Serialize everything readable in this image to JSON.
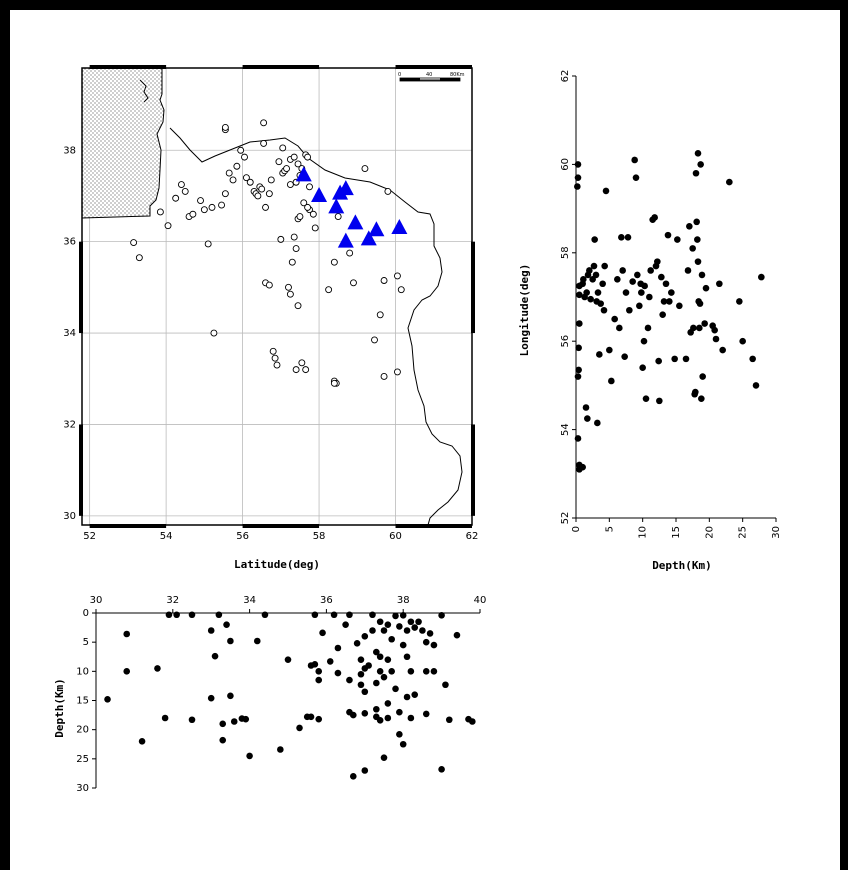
{
  "chart_data": [
    {
      "type": "scatter",
      "name": "map",
      "xlabel": "Latitude(deg)",
      "ylabel": "",
      "xlim": [
        51.8,
        62.0
      ],
      "ylim": [
        29.8,
        39.8
      ],
      "xticks": [
        52,
        54,
        56,
        58,
        60,
        62
      ],
      "yticks": [
        30,
        32,
        34,
        36,
        38
      ],
      "grid": true,
      "scale_bar_labels": [
        "0",
        "40",
        "80Km"
      ],
      "series": [
        {
          "marker": "open-circle",
          "points": [
            [
              54.05,
              36.35
            ],
            [
              54.25,
              36.95
            ],
            [
              53.15,
              35.98
            ],
            [
              53.3,
              35.65
            ],
            [
              53.85,
              36.65
            ],
            [
              54.4,
              37.25
            ],
            [
              54.5,
              37.1
            ],
            [
              54.6,
              36.55
            ],
            [
              54.7,
              36.6
            ],
            [
              54.9,
              36.9
            ],
            [
              55.0,
              36.7
            ],
            [
              55.2,
              36.75
            ],
            [
              55.1,
              35.95
            ],
            [
              55.45,
              36.8
            ],
            [
              55.55,
              37.05
            ],
            [
              55.65,
              37.5
            ],
            [
              55.75,
              37.35
            ],
            [
              55.55,
              38.45
            ],
            [
              55.85,
              37.65
            ],
            [
              55.95,
              38.0
            ],
            [
              56.05,
              37.85
            ],
            [
              56.1,
              37.4
            ],
            [
              56.2,
              37.3
            ],
            [
              56.3,
              37.1
            ],
            [
              56.35,
              37.05
            ],
            [
              56.4,
              37.0
            ],
            [
              56.45,
              37.2
            ],
            [
              56.5,
              37.15
            ],
            [
              56.6,
              36.75
            ],
            [
              56.55,
              38.6
            ],
            [
              56.7,
              37.05
            ],
            [
              56.75,
              37.35
            ],
            [
              56.95,
              37.75
            ],
            [
              57.05,
              37.5
            ],
            [
              57.1,
              37.55
            ],
            [
              57.15,
              37.6
            ],
            [
              57.25,
              37.8
            ],
            [
              57.35,
              37.85
            ],
            [
              57.45,
              37.7
            ],
            [
              57.55,
              37.6
            ],
            [
              57.4,
              37.3
            ],
            [
              57.5,
              37.45
            ],
            [
              57.65,
              37.9
            ],
            [
              57.7,
              37.85
            ],
            [
              57.75,
              37.2
            ],
            [
              57.35,
              36.1
            ],
            [
              57.45,
              36.5
            ],
            [
              57.5,
              36.55
            ],
            [
              57.6,
              36.85
            ],
            [
              57.75,
              36.7
            ],
            [
              57.85,
              36.6
            ],
            [
              57.9,
              36.3
            ],
            [
              57.3,
              35.55
            ],
            [
              57.4,
              35.85
            ],
            [
              57.0,
              36.05
            ],
            [
              56.6,
              35.1
            ],
            [
              56.7,
              35.05
            ],
            [
              57.2,
              35.0
            ],
            [
              57.25,
              34.85
            ],
            [
              57.45,
              34.6
            ],
            [
              56.8,
              33.6
            ],
            [
              56.85,
              33.45
            ],
            [
              56.9,
              33.3
            ],
            [
              57.4,
              33.2
            ],
            [
              57.55,
              33.35
            ],
            [
              57.65,
              33.2
            ],
            [
              58.25,
              34.95
            ],
            [
              58.4,
              35.55
            ],
            [
              58.5,
              36.55
            ],
            [
              58.8,
              35.75
            ],
            [
              58.9,
              35.1
            ],
            [
              59.2,
              37.6
            ],
            [
              59.7,
              35.15
            ],
            [
              59.8,
              37.1
            ],
            [
              60.05,
              35.25
            ],
            [
              60.15,
              34.95
            ],
            [
              59.6,
              34.4
            ],
            [
              59.45,
              33.85
            ],
            [
              59.7,
              33.05
            ],
            [
              60.05,
              33.15
            ],
            [
              58.4,
              32.95
            ],
            [
              58.45,
              32.9
            ],
            [
              58.4,
              32.9
            ],
            [
              55.25,
              34.0
            ],
            [
              55.55,
              38.5
            ],
            [
              56.55,
              38.15
            ],
            [
              57.05,
              38.05
            ],
            [
              57.25,
              37.25
            ],
            [
              57.7,
              36.75
            ]
          ]
        },
        {
          "marker": "filled-triangle",
          "points": [
            [
              57.6,
              37.45
            ],
            [
              58.0,
              37.0
            ],
            [
              58.55,
              37.05
            ],
            [
              58.7,
              37.15
            ],
            [
              58.45,
              36.75
            ],
            [
              58.95,
              36.4
            ],
            [
              58.7,
              36.0
            ],
            [
              59.3,
              36.05
            ],
            [
              59.5,
              36.25
            ],
            [
              60.1,
              36.3
            ]
          ]
        }
      ]
    },
    {
      "type": "scatter",
      "name": "depth-longitude",
      "xlabel": "Depth(Km)",
      "ylabel": "Longitude(deg)",
      "xlim": [
        0,
        30
      ],
      "ylim": [
        52,
        62
      ],
      "xticks": [
        0,
        5,
        10,
        15,
        20,
        25,
        30
      ],
      "yticks": [
        52,
        54,
        56,
        58,
        60,
        62
      ],
      "grid": false,
      "points": [
        [
          0.3,
          60.0
        ],
        [
          0.3,
          59.7
        ],
        [
          0.2,
          59.5
        ],
        [
          0.5,
          53.2
        ],
        [
          0.5,
          53.1
        ],
        [
          0.3,
          53.8
        ],
        [
          1.0,
          53.15
        ],
        [
          1.5,
          54.5
        ],
        [
          1.7,
          54.25
        ],
        [
          3.2,
          54.15
        ],
        [
          0.3,
          55.2
        ],
        [
          0.4,
          55.35
        ],
        [
          0.4,
          55.85
        ],
        [
          0.5,
          57.25
        ],
        [
          0.5,
          57.05
        ],
        [
          0.5,
          56.4
        ],
        [
          1.0,
          57.3
        ],
        [
          1.1,
          57.4
        ],
        [
          1.3,
          57.0
        ],
        [
          1.6,
          57.1
        ],
        [
          1.8,
          57.5
        ],
        [
          2.0,
          57.6
        ],
        [
          2.2,
          56.95
        ],
        [
          2.5,
          57.4
        ],
        [
          2.7,
          57.7
        ],
        [
          2.8,
          58.3
        ],
        [
          3.0,
          57.5
        ],
        [
          3.1,
          56.9
        ],
        [
          3.3,
          57.1
        ],
        [
          3.5,
          55.7
        ],
        [
          3.7,
          56.85
        ],
        [
          4.0,
          57.3
        ],
        [
          4.2,
          56.7
        ],
        [
          4.3,
          57.7
        ],
        [
          4.5,
          59.4
        ],
        [
          5.0,
          55.8
        ],
        [
          5.3,
          55.1
        ],
        [
          5.8,
          56.5
        ],
        [
          6.2,
          57.4
        ],
        [
          6.5,
          56.3
        ],
        [
          6.8,
          58.35
        ],
        [
          7.0,
          57.6
        ],
        [
          7.3,
          55.65
        ],
        [
          7.5,
          57.1
        ],
        [
          7.8,
          58.35
        ],
        [
          8.0,
          56.7
        ],
        [
          8.5,
          57.35
        ],
        [
          8.8,
          60.1
        ],
        [
          9.0,
          59.7
        ],
        [
          9.2,
          57.5
        ],
        [
          9.5,
          56.8
        ],
        [
          9.7,
          57.3
        ],
        [
          9.8,
          57.1
        ],
        [
          10.0,
          55.4
        ],
        [
          10.2,
          56.0
        ],
        [
          10.5,
          54.7
        ],
        [
          10.3,
          57.25
        ],
        [
          10.8,
          56.3
        ],
        [
          11.0,
          57.0
        ],
        [
          11.2,
          57.6
        ],
        [
          11.5,
          58.75
        ],
        [
          11.8,
          58.8
        ],
        [
          12.0,
          57.7
        ],
        [
          12.2,
          57.8
        ],
        [
          12.4,
          55.55
        ],
        [
          12.5,
          54.65
        ],
        [
          12.8,
          57.45
        ],
        [
          13.0,
          56.6
        ],
        [
          13.2,
          56.9
        ],
        [
          13.5,
          57.3
        ],
        [
          13.8,
          58.4
        ],
        [
          14.0,
          56.9
        ],
        [
          14.3,
          57.1
        ],
        [
          14.8,
          55.6
        ],
        [
          15.2,
          58.3
        ],
        [
          15.5,
          56.8
        ],
        [
          16.5,
          55.6
        ],
        [
          16.8,
          57.6
        ],
        [
          17.0,
          58.6
        ],
        [
          17.2,
          56.2
        ],
        [
          17.5,
          58.1
        ],
        [
          17.6,
          56.3
        ],
        [
          17.8,
          54.8
        ],
        [
          17.9,
          54.85
        ],
        [
          18.0,
          59.8
        ],
        [
          18.1,
          58.7
        ],
        [
          18.2,
          58.3
        ],
        [
          18.3,
          57.8
        ],
        [
          18.4,
          56.9
        ],
        [
          18.5,
          56.3
        ],
        [
          18.6,
          56.85
        ],
        [
          18.8,
          54.7
        ],
        [
          18.9,
          57.5
        ],
        [
          18.3,
          60.25
        ],
        [
          18.7,
          60.0
        ],
        [
          19.0,
          55.2
        ],
        [
          19.3,
          56.4
        ],
        [
          19.5,
          57.2
        ],
        [
          20.5,
          56.35
        ],
        [
          20.8,
          56.25
        ],
        [
          21.0,
          56.05
        ],
        [
          21.5,
          57.3
        ],
        [
          22.0,
          55.8
        ],
        [
          23.0,
          59.6
        ],
        [
          24.5,
          56.9
        ],
        [
          25.0,
          56.0
        ],
        [
          26.5,
          55.6
        ],
        [
          27.0,
          55.0
        ],
        [
          27.8,
          57.45
        ]
      ]
    },
    {
      "type": "scatter",
      "name": "longitude-depth",
      "xlabel": "",
      "ylabel": "Depth(Km)",
      "xlim": [
        30,
        40
      ],
      "ylim": [
        30,
        0
      ],
      "xticks": [
        30,
        32,
        34,
        36,
        38,
        40
      ],
      "yticks": [
        0,
        5,
        10,
        15,
        20,
        25,
        30
      ],
      "grid": false,
      "points": [
        [
          30.3,
          14.8
        ],
        [
          30.8,
          3.6
        ],
        [
          30.8,
          10.0
        ],
        [
          31.2,
          22.0
        ],
        [
          31.6,
          9.5
        ],
        [
          31.8,
          18.0
        ],
        [
          31.9,
          0.3
        ],
        [
          32.1,
          0.3
        ],
        [
          32.5,
          0.3
        ],
        [
          32.5,
          18.3
        ],
        [
          33.0,
          3.0
        ],
        [
          33.1,
          7.4
        ],
        [
          33.0,
          14.6
        ],
        [
          33.2,
          0.3
        ],
        [
          33.3,
          19.0
        ],
        [
          33.4,
          2.0
        ],
        [
          33.5,
          14.2
        ],
        [
          33.6,
          18.6
        ],
        [
          33.5,
          4.8
        ],
        [
          33.3,
          21.8
        ],
        [
          33.8,
          18.1
        ],
        [
          34.0,
          24.5
        ],
        [
          33.9,
          18.2
        ],
        [
          34.2,
          4.8
        ],
        [
          34.4,
          0.3
        ],
        [
          34.8,
          23.4
        ],
        [
          35.0,
          8.0
        ],
        [
          35.3,
          19.7
        ],
        [
          35.5,
          17.8
        ],
        [
          35.6,
          9.0
        ],
        [
          35.6,
          17.8
        ],
        [
          35.7,
          0.3
        ],
        [
          35.7,
          8.8
        ],
        [
          35.8,
          10.0
        ],
        [
          35.8,
          11.5
        ],
        [
          35.9,
          3.4
        ],
        [
          35.8,
          18.2
        ],
        [
          36.1,
          8.3
        ],
        [
          36.3,
          6.0
        ],
        [
          36.2,
          0.3
        ],
        [
          36.3,
          10.3
        ],
        [
          36.5,
          2.0
        ],
        [
          36.6,
          11.5
        ],
        [
          36.6,
          0.3
        ],
        [
          36.6,
          17.0
        ],
        [
          36.7,
          17.5
        ],
        [
          36.7,
          28.0
        ],
        [
          36.8,
          5.2
        ],
        [
          36.9,
          8.0
        ],
        [
          36.9,
          10.5
        ],
        [
          36.9,
          12.3
        ],
        [
          37.0,
          4.0
        ],
        [
          37.0,
          9.5
        ],
        [
          37.0,
          13.5
        ],
        [
          37.0,
          17.2
        ],
        [
          37.0,
          27.0
        ],
        [
          37.1,
          9.0
        ],
        [
          37.2,
          0.3
        ],
        [
          37.2,
          3.0
        ],
        [
          37.3,
          6.7
        ],
        [
          37.3,
          12.0
        ],
        [
          37.3,
          16.5
        ],
        [
          37.3,
          17.8
        ],
        [
          37.4,
          1.5
        ],
        [
          37.4,
          7.5
        ],
        [
          37.4,
          10.0
        ],
        [
          37.4,
          18.4
        ],
        [
          37.5,
          3.0
        ],
        [
          37.5,
          11.0
        ],
        [
          37.5,
          24.8
        ],
        [
          37.6,
          2.0
        ],
        [
          37.6,
          8.0
        ],
        [
          37.6,
          15.5
        ],
        [
          37.6,
          18.0
        ],
        [
          37.7,
          4.5
        ],
        [
          37.7,
          10.0
        ],
        [
          37.8,
          0.5
        ],
        [
          37.8,
          13.0
        ],
        [
          37.9,
          2.3
        ],
        [
          37.9,
          17.0
        ],
        [
          37.9,
          20.8
        ],
        [
          38.0,
          0.4
        ],
        [
          38.0,
          5.5
        ],
        [
          38.0,
          22.5
        ],
        [
          38.1,
          3.0
        ],
        [
          38.1,
          7.5
        ],
        [
          38.1,
          14.4
        ],
        [
          38.2,
          1.5
        ],
        [
          38.2,
          10.0
        ],
        [
          38.2,
          18.0
        ],
        [
          38.3,
          2.5
        ],
        [
          38.3,
          14.0
        ],
        [
          38.4,
          1.5
        ],
        [
          38.5,
          3.0
        ],
        [
          38.6,
          5.0
        ],
        [
          38.6,
          10.0
        ],
        [
          38.6,
          17.3
        ],
        [
          38.7,
          3.5
        ],
        [
          38.8,
          5.5
        ],
        [
          38.8,
          10.0
        ],
        [
          39.0,
          0.4
        ],
        [
          39.1,
          12.3
        ],
        [
          39.0,
          26.8
        ],
        [
          39.2,
          18.3
        ],
        [
          39.4,
          3.8
        ],
        [
          39.7,
          18.2
        ],
        [
          39.8,
          18.6
        ]
      ]
    }
  ]
}
